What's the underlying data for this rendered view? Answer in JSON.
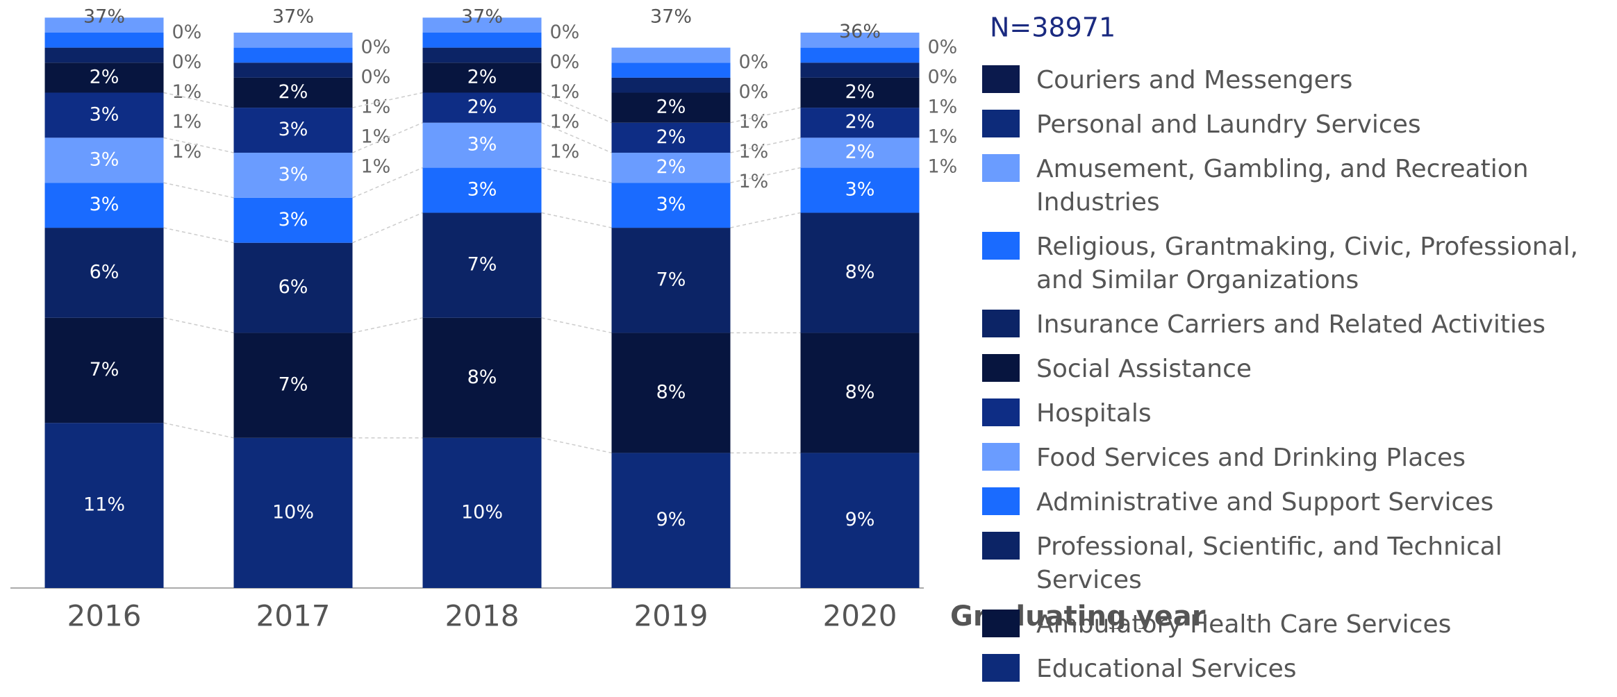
{
  "chart_data": {
    "type": "stacked_bar",
    "annotation": "N=38971",
    "x_label": "Graduating year",
    "categories": [
      "2016",
      "2017",
      "2018",
      "2019",
      "2020"
    ],
    "ylim": [
      0,
      37
    ],
    "series": [
      {
        "name": "Educational Services",
        "color": "#0d2b7a",
        "values": [
          11,
          10,
          10,
          9,
          9
        ],
        "value_labels": [
          "11%",
          "10%",
          "10%",
          "9%",
          "9%"
        ]
      },
      {
        "name": "Ambulatory Health Care Services",
        "color": "#07153f",
        "values": [
          7,
          7,
          8,
          8,
          8
        ],
        "value_labels": [
          "7%",
          "7%",
          "8%",
          "8%",
          "8%"
        ]
      },
      {
        "name": "Professional, Scientific, and Technical Services",
        "color": "#0c2466",
        "values": [
          6,
          6,
          7,
          7,
          8
        ],
        "value_labels": [
          "6%",
          "6%",
          "7%",
          "7%",
          "8%"
        ]
      },
      {
        "name": "Administrative and Support Services",
        "color": "#1a6bff",
        "values": [
          3,
          3,
          3,
          3,
          3
        ],
        "value_labels": [
          "3%",
          "3%",
          "3%",
          "3%",
          "3%"
        ]
      },
      {
        "name": "Food Services and Drinking Places",
        "color": "#6a9cff",
        "values": [
          3,
          3,
          3,
          2,
          2
        ],
        "value_labels": [
          "3%",
          "3%",
          "3%",
          "2%",
          "2%"
        ]
      },
      {
        "name": "Hospitals",
        "color": "#0e2d85",
        "values": [
          3,
          3,
          2,
          2,
          2
        ],
        "value_labels": [
          "3%",
          "3%",
          "2%",
          "2%",
          "2%"
        ]
      },
      {
        "name": "Social Assistance",
        "color": "#07153f",
        "values": [
          2,
          2,
          2,
          2,
          2
        ],
        "value_labels": [
          "2%",
          "2%",
          "2%",
          "2%",
          "2%"
        ]
      },
      {
        "name": "Insurance Carriers and Related Activities",
        "color": "#0c2466",
        "values": [
          1,
          1,
          1,
          1,
          1
        ],
        "value_labels": [
          "1%",
          "1%",
          "1%",
          "1%",
          "1%"
        ]
      },
      {
        "name": "Religious, Grantmaking, Civic, Professional, and Similar Organizations",
        "color": "#1a6bff",
        "values": [
          1,
          1,
          1,
          1,
          1
        ],
        "value_labels": [
          "1%",
          "1%",
          "1%",
          "1%",
          "1%"
        ]
      },
      {
        "name": "Amusement, Gambling, and Recreation Industries",
        "color": "#6a9cff",
        "values": [
          1,
          1,
          1,
          1,
          1
        ],
        "value_labels": [
          "1%",
          "1%",
          "1%",
          "1%",
          "1%"
        ]
      },
      {
        "name": "Personal and Laundry Services",
        "color": "#0d2b7a",
        "values": [
          0,
          0,
          0,
          0,
          0
        ],
        "value_labels": [
          "0%",
          "0%",
          "0%",
          "0%",
          "0%"
        ]
      },
      {
        "name": "Couriers and Messengers",
        "color": "#0b1a4d",
        "values": [
          0,
          0,
          0,
          0,
          0
        ],
        "value_labels": [
          "0%",
          "0%",
          "0%",
          "0%",
          "0%"
        ]
      }
    ],
    "totals": {
      "values": [
        37,
        37,
        37,
        37,
        36
      ],
      "value_labels": [
        "37%",
        "37%",
        "37%",
        "37%",
        "36%"
      ]
    }
  }
}
